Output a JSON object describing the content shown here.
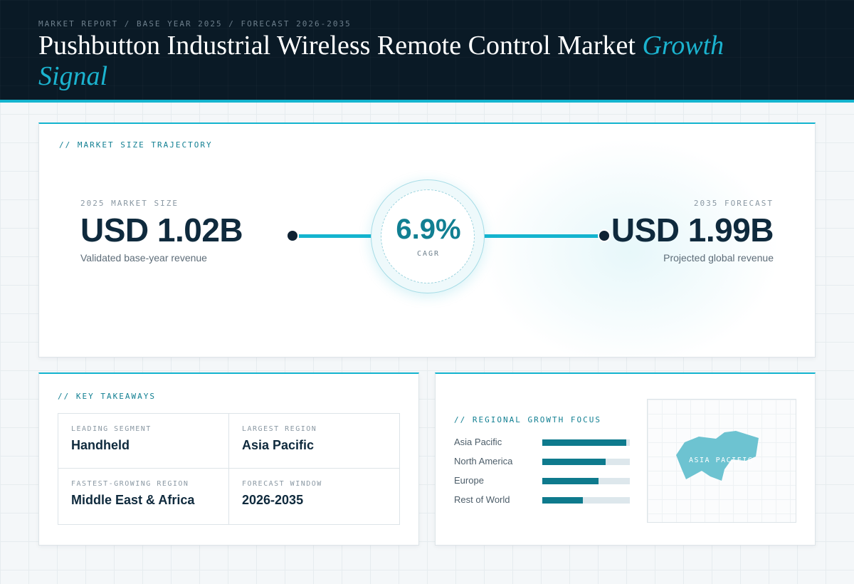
{
  "header": {
    "eyebrow": "MARKET REPORT / BASE YEAR 2025 / FORECAST 2026-2035",
    "title_main": "Pushbutton Industrial Wireless Remote Control Market ",
    "title_accent": "Growth Signal"
  },
  "trajectory": {
    "label": "// MARKET SIZE TRAJECTORY",
    "base": {
      "kicker": "2025 MARKET SIZE",
      "value": "USD 1.02B",
      "sub": "Validated base-year revenue"
    },
    "forecast": {
      "kicker": "2035 FORECAST",
      "value": "USD 1.99B",
      "sub": "Projected global revenue"
    },
    "cagr": {
      "value": "6.9%",
      "label": "CAGR"
    }
  },
  "takeaways": {
    "label": "// KEY TAKEAWAYS",
    "items": [
      {
        "key": "LEADING SEGMENT",
        "value": "Handheld"
      },
      {
        "key": "LARGEST REGION",
        "value": "Asia Pacific"
      },
      {
        "key": "FASTEST-GROWING REGION",
        "value": "Middle East & Africa"
      },
      {
        "key": "FORECAST WINDOW",
        "value": "2026-2035"
      }
    ]
  },
  "regional": {
    "label": "// REGIONAL GROWTH FOCUS",
    "regions": [
      {
        "name": "Asia Pacific",
        "share": 0.96
      },
      {
        "name": "North America",
        "share": 0.72
      },
      {
        "name": "Europe",
        "share": 0.64
      },
      {
        "name": "Rest of World",
        "share": 0.46
      }
    ],
    "map_label": "ASIA PACIFIC"
  },
  "colors": {
    "accent": "#14b4cf",
    "accent_dark": "#0e7a8d",
    "navy": "#0a1a26",
    "map_fill": "#6dc3d1"
  }
}
